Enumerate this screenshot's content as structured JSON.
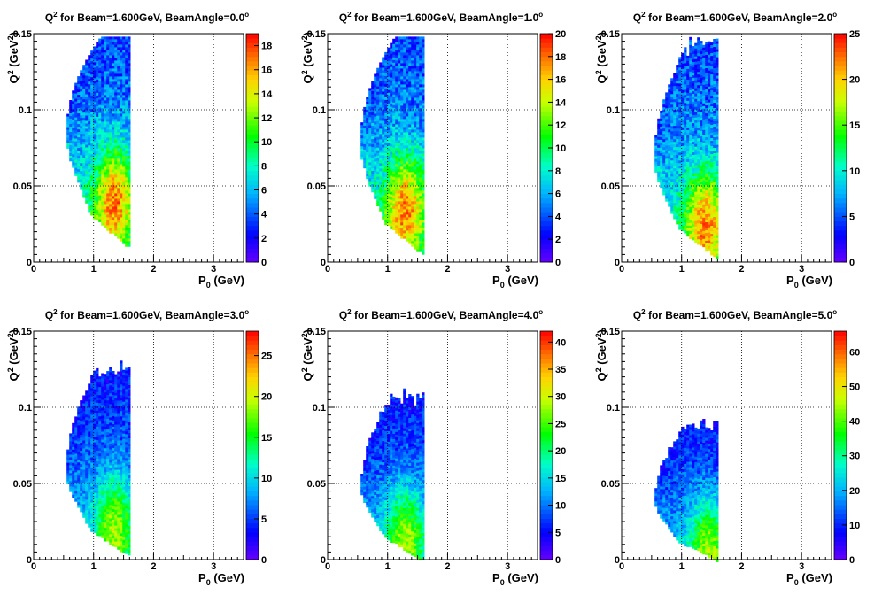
{
  "chart_data": [
    {
      "type": "heatmap",
      "title": "Q<sup>2</sup> for Beam=1.600GeV, BeamAngle=0.0°",
      "title_parts": {
        "q": "Q",
        "sup": "2",
        "rest": " for Beam=1.600GeV, BeamAngle=0.0",
        "deg": "o"
      },
      "xlabel": {
        "main": "P",
        "sub": "0",
        "unit": " (GeV)"
      },
      "ylabel": {
        "main": "Q",
        "sup": "2",
        "unit": " (GeV",
        "unit_sup": "2",
        "close": ")"
      },
      "xlim": [
        0,
        3.5
      ],
      "ylim": [
        0,
        0.15
      ],
      "x_ticks": [
        "0",
        "1",
        "2",
        "3"
      ],
      "y_ticks": [
        "0",
        "0.05",
        "0.1",
        "0.15"
      ],
      "grid": true,
      "z_range": [
        0,
        19
      ],
      "z_ticks": [
        "0",
        "2",
        "4",
        "6",
        "8",
        "10",
        "12",
        "14",
        "16",
        "18"
      ],
      "z_tick_values": [
        0,
        2,
        4,
        6,
        8,
        10,
        12,
        14,
        16,
        18
      ],
      "shape": {
        "x_left_min": 0.55,
        "x_right": 1.6,
        "q_center": 0.085,
        "q_top": 0.148,
        "q_bottom_left": 0.045,
        "q_bottom_right": 0.01,
        "flat_top": true
      },
      "peak_region": {
        "x": 1.35,
        "q": 0.04
      }
    },
    {
      "type": "heatmap",
      "title_parts": {
        "q": "Q",
        "sup": "2",
        "rest": " for Beam=1.600GeV, BeamAngle=1.0",
        "deg": "o"
      },
      "xlabel": {
        "main": "P",
        "sub": "0",
        "unit": " (GeV)"
      },
      "ylabel": {
        "main": "Q",
        "sup": "2",
        "unit": " (GeV",
        "unit_sup": "2",
        "close": ")"
      },
      "xlim": [
        0,
        3.5
      ],
      "ylim": [
        0,
        0.15
      ],
      "x_ticks": [
        "0",
        "1",
        "2",
        "3"
      ],
      "y_ticks": [
        "0",
        "0.05",
        "0.1",
        "0.15"
      ],
      "grid": true,
      "z_range": [
        0,
        20
      ],
      "z_ticks": [
        "0",
        "2",
        "4",
        "6",
        "8",
        "10",
        "12",
        "14",
        "16",
        "18",
        "20"
      ],
      "z_tick_values": [
        0,
        2,
        4,
        6,
        8,
        10,
        12,
        14,
        16,
        18,
        20
      ],
      "shape": {
        "x_left_min": 0.55,
        "x_right": 1.6,
        "q_center": 0.078,
        "q_top": 0.148,
        "q_bottom_left": 0.04,
        "q_bottom_right": 0.005,
        "flat_top": true
      },
      "peak_region": {
        "x": 1.3,
        "q": 0.035
      }
    },
    {
      "type": "heatmap",
      "title_parts": {
        "q": "Q",
        "sup": "2",
        "rest": " for Beam=1.600GeV, BeamAngle=2.0",
        "deg": "o"
      },
      "xlabel": {
        "main": "P",
        "sub": "0",
        "unit": " (GeV)"
      },
      "ylabel": {
        "main": "Q",
        "sup": "2",
        "unit": " (GeV",
        "unit_sup": "2",
        "close": ")"
      },
      "xlim": [
        0,
        3.5
      ],
      "ylim": [
        0,
        0.15
      ],
      "x_ticks": [
        "0",
        "1",
        "2",
        "3"
      ],
      "y_ticks": [
        "0",
        "0.05",
        "0.1",
        "0.15"
      ],
      "grid": true,
      "z_range": [
        0,
        25
      ],
      "z_ticks": [
        "0",
        "5",
        "10",
        "15",
        "20",
        "25"
      ],
      "z_tick_values": [
        0,
        5,
        10,
        15,
        20,
        25
      ],
      "shape": {
        "x_left_min": 0.55,
        "x_right": 1.6,
        "q_center": 0.068,
        "q_top": 0.148,
        "q_bottom_left": 0.035,
        "q_bottom_right": 0.003,
        "flat_top": false
      },
      "peak_region": {
        "x": 1.4,
        "q": 0.025
      }
    },
    {
      "type": "heatmap",
      "title_parts": {
        "q": "Q",
        "sup": "2",
        "rest": " for Beam=1.600GeV, BeamAngle=3.0",
        "deg": "o"
      },
      "xlabel": {
        "main": "P",
        "sub": "0",
        "unit": " (GeV)"
      },
      "ylabel": {
        "main": "Q",
        "sup": "2",
        "unit": " (GeV",
        "unit_sup": "2",
        "close": ")"
      },
      "xlim": [
        0,
        3.5
      ],
      "ylim": [
        0,
        0.15
      ],
      "x_ticks": [
        "0",
        "1",
        "2",
        "3"
      ],
      "y_ticks": [
        "0",
        "0.05",
        "0.1",
        "0.15"
      ],
      "grid": true,
      "z_range": [
        0,
        28
      ],
      "z_ticks": [
        "0",
        "5",
        "10",
        "15",
        "20",
        "25"
      ],
      "z_tick_values": [
        0,
        5,
        10,
        15,
        20,
        25
      ],
      "shape": {
        "x_left_min": 0.55,
        "x_right": 1.6,
        "q_center": 0.058,
        "q_top": 0.133,
        "q_bottom_left": 0.03,
        "q_bottom_right": 0.003,
        "flat_top": false
      },
      "peak_region": {
        "x": 1.35,
        "q": 0.02
      }
    },
    {
      "type": "heatmap",
      "title_parts": {
        "q": "Q",
        "sup": "2",
        "rest": " for Beam=1.600GeV, BeamAngle=4.0",
        "deg": "o"
      },
      "xlabel": {
        "main": "P",
        "sub": "0",
        "unit": " (GeV)"
      },
      "ylabel": {
        "main": "Q",
        "sup": "2",
        "unit": " (GeV",
        "unit_sup": "2",
        "close": ")"
      },
      "xlim": [
        0,
        3.5
      ],
      "ylim": [
        0,
        0.15
      ],
      "x_ticks": [
        "0",
        "1",
        "2",
        "3"
      ],
      "y_ticks": [
        "0",
        "0.05",
        "0.1",
        "0.15"
      ],
      "grid": true,
      "z_range": [
        0,
        42
      ],
      "z_ticks": [
        "0",
        "5",
        "10",
        "15",
        "20",
        "25",
        "30",
        "35",
        "40"
      ],
      "z_tick_values": [
        0,
        5,
        10,
        15,
        20,
        25,
        30,
        35,
        40
      ],
      "shape": {
        "x_left_min": 0.55,
        "x_right": 1.6,
        "q_center": 0.048,
        "q_top": 0.113,
        "q_bottom_left": 0.025,
        "q_bottom_right": 0.0,
        "flat_top": false
      },
      "peak_region": {
        "x": 1.3,
        "q": 0.012
      }
    },
    {
      "type": "heatmap",
      "title_parts": {
        "q": "Q",
        "sup": "2",
        "rest": " for Beam=1.600GeV, BeamAngle=5.0",
        "deg": "o"
      },
      "xlabel": {
        "main": "P",
        "sub": "0",
        "unit": " (GeV)"
      },
      "ylabel": {
        "main": "Q",
        "sup": "2",
        "unit": " (GeV",
        "unit_sup": "2",
        "close": ")"
      },
      "xlim": [
        0,
        3.5
      ],
      "ylim": [
        0,
        0.15
      ],
      "x_ticks": [
        "0",
        "1",
        "2",
        "3"
      ],
      "y_ticks": [
        "0",
        "0.05",
        "0.1",
        "0.15"
      ],
      "grid": true,
      "z_range": [
        0,
        66
      ],
      "z_ticks": [
        "0",
        "10",
        "20",
        "30",
        "40",
        "50",
        "60"
      ],
      "z_tick_values": [
        0,
        10,
        20,
        30,
        40,
        50,
        60
      ],
      "shape": {
        "x_left_min": 0.55,
        "x_right": 1.6,
        "q_center": 0.04,
        "q_top": 0.093,
        "q_bottom_left": 0.02,
        "q_bottom_right": 0.0,
        "flat_top": false
      },
      "peak_region": {
        "x": 1.45,
        "q": 0.005
      }
    }
  ]
}
